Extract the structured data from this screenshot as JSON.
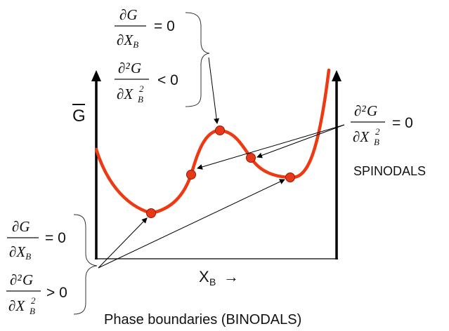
{
  "diagram": {
    "axis_label_y": "G",
    "axis_label_x": "X",
    "axis_label_x_sub": "B",
    "axis_arrow": "→",
    "right_label": "SPINODALS",
    "bottom_label": "Phase boundaries (BINODALS)",
    "math": {
      "partial": "∂",
      "partial2": "∂²",
      "G": "G",
      "X": "X",
      "sub_B": "B",
      "sup_2": "2",
      "eq_zero": "= 0",
      "lt_zero": "< 0",
      "gt_zero": "> 0"
    },
    "colors": {
      "curve": "#ee3a12",
      "marker_fill": "#e8381a",
      "marker_stroke": "#9a1a00",
      "axis": "#000000"
    }
  }
}
